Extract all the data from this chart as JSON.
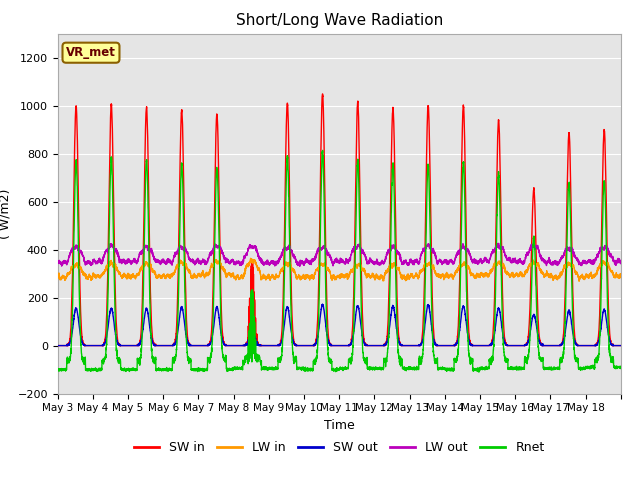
{
  "title": "Short/Long Wave Radiation",
  "xlabel": "Time",
  "ylabel": "( W/m2)",
  "ylim": [
    -200,
    1300
  ],
  "yticks": [
    -200,
    0,
    200,
    400,
    600,
    800,
    1000,
    1200
  ],
  "background_color": "#ffffff",
  "plot_bg_color": "#e5e5e5",
  "grid_color": "#ffffff",
  "label_box_text": "VR_met",
  "label_box_color": "#ffff99",
  "label_box_edge": "#8B6000",
  "legend_labels": [
    "SW in",
    "LW in",
    "SW out",
    "LW out",
    "Rnet"
  ],
  "colors": {
    "SW in": "#ff0000",
    "LW in": "#ff9900",
    "SW out": "#0000cc",
    "LW out": "#bb00bb",
    "Rnet": "#00cc00"
  },
  "linewidth": 1.0,
  "n_days": 16,
  "xtick_labels": [
    "May 3",
    "May 4",
    "May 5",
    "May 6",
    "May 7",
    "May 8",
    "May 9",
    "May 10",
    "May 11",
    "May 12",
    "May 13",
    "May 14",
    "May 15",
    "May 16",
    "May 17",
    "May 18"
  ],
  "sw_in_peaks": [
    1000,
    1005,
    990,
    980,
    965,
    350,
    1010,
    1050,
    1015,
    990,
    1000,
    1000,
    940,
    650,
    890,
    900
  ],
  "sw_out_peaks": [
    155,
    155,
    155,
    160,
    160,
    60,
    160,
    170,
    165,
    165,
    170,
    165,
    155,
    130,
    145,
    150
  ],
  "lw_in_day": [
    335,
    340,
    340,
    345,
    350,
    355,
    340,
    340,
    335,
    335,
    340,
    340,
    345,
    345,
    340,
    345
  ],
  "lw_in_night": [
    285,
    290,
    290,
    290,
    295,
    285,
    285,
    285,
    290,
    285,
    290,
    290,
    295,
    295,
    285,
    290
  ],
  "lw_out_day": [
    410,
    415,
    410,
    410,
    415,
    415,
    410,
    410,
    415,
    410,
    415,
    410,
    415,
    415,
    405,
    410
  ],
  "lw_out_night": [
    345,
    350,
    350,
    350,
    350,
    345,
    345,
    350,
    350,
    345,
    350,
    350,
    355,
    350,
    345,
    350
  ],
  "rnet_night": [
    -100,
    -100,
    -100,
    -100,
    -100,
    -95,
    -95,
    -100,
    -95,
    -95,
    -95,
    -100,
    -95,
    -95,
    -95,
    -90
  ]
}
